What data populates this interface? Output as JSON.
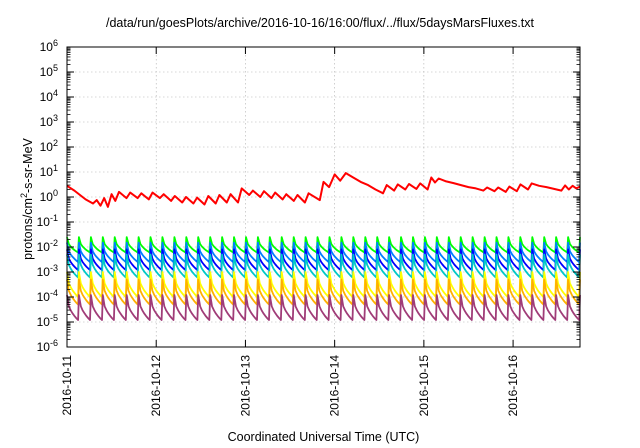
{
  "chart_data": {
    "type": "line",
    "title": "/data/run/goesPlots/archive/2016-10-16/16:00/flux/../flux/5daysMarsFluxes.txt",
    "xlabel": "Coordinated Universal Time (UTC)",
    "ylabel": "protons/cm2-s-sr-MeV",
    "ylabel_parts": {
      "base": "protons/cm",
      "sup": "2",
      "rest": "-s-sr-MeV"
    },
    "x_ticks": [
      "2016-10-11",
      "2016-10-12",
      "2016-10-13",
      "2016-10-14",
      "2016-10-15",
      "2016-10-16"
    ],
    "xlim": [
      "2016-10-11 00:00",
      "2016-10-16 18:00"
    ],
    "y_scale": "log",
    "ylim": [
      1e-06,
      1000000.0
    ],
    "y_ticks": [
      {
        "base": "10",
        "exp": "-6"
      },
      {
        "base": "10",
        "exp": "-5"
      },
      {
        "base": "10",
        "exp": "-4"
      },
      {
        "base": "10",
        "exp": "-3"
      },
      {
        "base": "10",
        "exp": "-2"
      },
      {
        "base": "10",
        "exp": "-1"
      },
      {
        "base": "10",
        "exp": "0"
      },
      {
        "base": "10",
        "exp": "1"
      },
      {
        "base": "10",
        "exp": "2"
      },
      {
        "base": "10",
        "exp": "3"
      },
      {
        "base": "10",
        "exp": "4"
      },
      {
        "base": "10",
        "exp": "5"
      },
      {
        "base": "10",
        "exp": "6"
      }
    ],
    "grid": true,
    "legend": "none",
    "sawtooth_cycles": 43,
    "series": [
      {
        "color": "#ff0000",
        "values": [
          [
            "2016-10-11 00:00",
            2.8
          ],
          [
            "2016-10-11 02:00",
            1.8
          ],
          [
            "2016-10-11 03:30",
            1.2
          ],
          [
            "2016-10-11 05:00",
            0.8
          ],
          [
            "2016-10-11 07:00",
            0.55
          ],
          [
            "2016-10-11 08:00",
            0.75
          ],
          [
            "2016-10-11 09:00",
            0.45
          ],
          [
            "2016-10-11 10:00",
            0.9
          ],
          [
            "2016-10-11 11:00",
            0.4
          ],
          [
            "2016-10-11 12:00",
            1.3
          ],
          [
            "2016-10-11 13:00",
            0.7
          ],
          [
            "2016-10-11 14:00",
            1.6
          ],
          [
            "2016-10-11 16:00",
            0.9
          ],
          [
            "2016-10-11 17:00",
            1.5
          ],
          [
            "2016-10-11 19:00",
            0.9
          ],
          [
            "2016-10-11 20:00",
            1.4
          ],
          [
            "2016-10-11 22:00",
            0.8
          ],
          [
            "2016-10-11 23:00",
            1.5
          ],
          [
            "2016-10-12 01:00",
            0.9
          ],
          [
            "2016-10-12 02:00",
            1.3
          ],
          [
            "2016-10-12 04:00",
            0.7
          ],
          [
            "2016-10-12 05:00",
            1.1
          ],
          [
            "2016-10-12 07:00",
            0.6
          ],
          [
            "2016-10-12 08:00",
            1.0
          ],
          [
            "2016-10-12 10:00",
            0.55
          ],
          [
            "2016-10-12 11:00",
            0.95
          ],
          [
            "2016-10-12 13:00",
            0.5
          ],
          [
            "2016-10-12 14:00",
            1.1
          ],
          [
            "2016-10-12 16:00",
            0.55
          ],
          [
            "2016-10-12 17:00",
            1.2
          ],
          [
            "2016-10-12 19:00",
            0.6
          ],
          [
            "2016-10-12 20:00",
            1.3
          ],
          [
            "2016-10-12 22:00",
            0.6
          ],
          [
            "2016-10-12 23:00",
            2.2
          ],
          [
            "2016-10-13 01:00",
            1.2
          ],
          [
            "2016-10-13 02:00",
            1.8
          ],
          [
            "2016-10-13 04:00",
            1.0
          ],
          [
            "2016-10-13 05:00",
            1.7
          ],
          [
            "2016-10-13 07:00",
            0.9
          ],
          [
            "2016-10-13 08:00",
            1.5
          ],
          [
            "2016-10-13 10:00",
            0.8
          ],
          [
            "2016-10-13 11:00",
            1.3
          ],
          [
            "2016-10-13 13:00",
            0.7
          ],
          [
            "2016-10-13 14:00",
            1.2
          ],
          [
            "2016-10-13 16:00",
            0.6
          ],
          [
            "2016-10-13 17:00",
            1.4
          ],
          [
            "2016-10-13 20:00",
            0.75
          ],
          [
            "2016-10-13 21:00",
            4.0
          ],
          [
            "2016-10-13 22:30",
            2.5
          ],
          [
            "2016-10-14 00:00",
            8.0
          ],
          [
            "2016-10-14 01:30",
            4.5
          ],
          [
            "2016-10-14 03:00",
            9.0
          ],
          [
            "2016-10-14 05:00",
            6.0
          ],
          [
            "2016-10-14 07:00",
            4.0
          ],
          [
            "2016-10-14 09:00",
            3.0
          ],
          [
            "2016-10-14 11:00",
            2.0
          ],
          [
            "2016-10-14 13:00",
            1.4
          ],
          [
            "2016-10-14 14:00",
            3.0
          ],
          [
            "2016-10-14 16:00",
            1.8
          ],
          [
            "2016-10-14 17:00",
            3.2
          ],
          [
            "2016-10-14 19:00",
            2.0
          ],
          [
            "2016-10-14 20:00",
            3.3
          ],
          [
            "2016-10-14 22:00",
            2.1
          ],
          [
            "2016-10-14 23:00",
            3.5
          ],
          [
            "2016-10-15 01:00",
            2.0
          ],
          [
            "2016-10-15 02:00",
            6.0
          ],
          [
            "2016-10-15 03:00",
            3.8
          ],
          [
            "2016-10-15 04:00",
            5.5
          ],
          [
            "2016-10-15 06:00",
            4.2
          ],
          [
            "2016-10-15 08:00",
            3.6
          ],
          [
            "2016-10-15 10:00",
            3.0
          ],
          [
            "2016-10-15 12:00",
            2.5
          ],
          [
            "2016-10-15 14:00",
            2.2
          ],
          [
            "2016-10-15 16:00",
            1.8
          ],
          [
            "2016-10-15 17:00",
            2.4
          ],
          [
            "2016-10-15 19:00",
            1.7
          ],
          [
            "2016-10-15 20:00",
            2.4
          ],
          [
            "2016-10-15 22:00",
            1.6
          ],
          [
            "2016-10-15 23:00",
            2.6
          ],
          [
            "2016-10-16 01:00",
            1.7
          ],
          [
            "2016-10-16 02:00",
            3.2
          ],
          [
            "2016-10-16 04:00",
            2.0
          ],
          [
            "2016-10-16 05:00",
            3.5
          ],
          [
            "2016-10-16 07:00",
            2.8
          ],
          [
            "2016-10-16 09:00",
            2.5
          ],
          [
            "2016-10-16 11:00",
            2.1
          ],
          [
            "2016-10-16 13:00",
            1.8
          ],
          [
            "2016-10-16 14:00",
            2.9
          ],
          [
            "2016-10-16 15:00",
            2.0
          ],
          [
            "2016-10-16 16:00",
            2.8
          ],
          [
            "2016-10-16 17:00",
            2.2
          ],
          [
            "2016-10-16 18:00",
            2.6
          ]
        ]
      },
      {
        "color": "#00ff00",
        "shape": "sawtooth",
        "min": 0.006,
        "max": 0.025
      },
      {
        "color": "#0080ff",
        "shape": "sawtooth",
        "min": 0.0025,
        "max": 0.015
      },
      {
        "color": "#0000ff",
        "shape": "sawtooth",
        "min": 0.0012,
        "max": 0.008
      },
      {
        "color": "#00c8c8",
        "shape": "sawtooth",
        "min": 0.0006,
        "max": 0.005
      },
      {
        "color": "#ffff00",
        "shape": "sawtooth",
        "min": 0.0001,
        "max": 0.001
      },
      {
        "color": "#ffb000",
        "shape": "sawtooth",
        "min": 5e-05,
        "max": 0.0005
      },
      {
        "color": "#a03c78",
        "shape": "sawtooth",
        "min": 1.2e-05,
        "max": 0.00012
      }
    ]
  }
}
